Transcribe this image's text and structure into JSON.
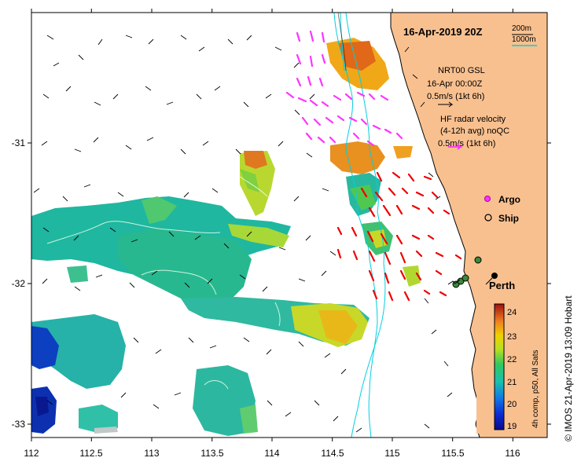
{
  "title": "16-Apr-2019 20Z",
  "depth_legend": {
    "shallow": "200m",
    "deep": "1000m"
  },
  "gsl_label": {
    "line1": "NRT00 GSL",
    "line2": "16-Apr 00:00Z",
    "line3": "0.5m/s (1kt 6h)"
  },
  "hf_label": {
    "line1": "HF radar velocity",
    "line2": "(4-12h avg) noQC",
    "line3": "0.5m/s (1kt 6h)"
  },
  "legend": {
    "argo": "Argo",
    "ship": "Ship"
  },
  "city": "Perth",
  "colorbar": {
    "label": "4h comp, p50, All Sats",
    "ticks": [
      "19",
      "20",
      "21",
      "22",
      "23",
      "24"
    ],
    "min": 18.8,
    "max": 24.4
  },
  "credit": "© IMOS 21-Apr-2019 13:09 Hobart",
  "x_axis": {
    "ticks": [
      "112",
      "112.5",
      "113",
      "113.5",
      "114",
      "114.5",
      "115",
      "115.5",
      "116"
    ]
  },
  "y_axis": {
    "ticks": [
      "-31",
      "-32",
      "-33"
    ]
  },
  "colors": {
    "land": "#f9c08f",
    "isobath": "#00d0e0",
    "hf_arrow": "#ff33ff",
    "gsl_arrow": "#000000",
    "red_arrow": "#ee0000"
  }
}
